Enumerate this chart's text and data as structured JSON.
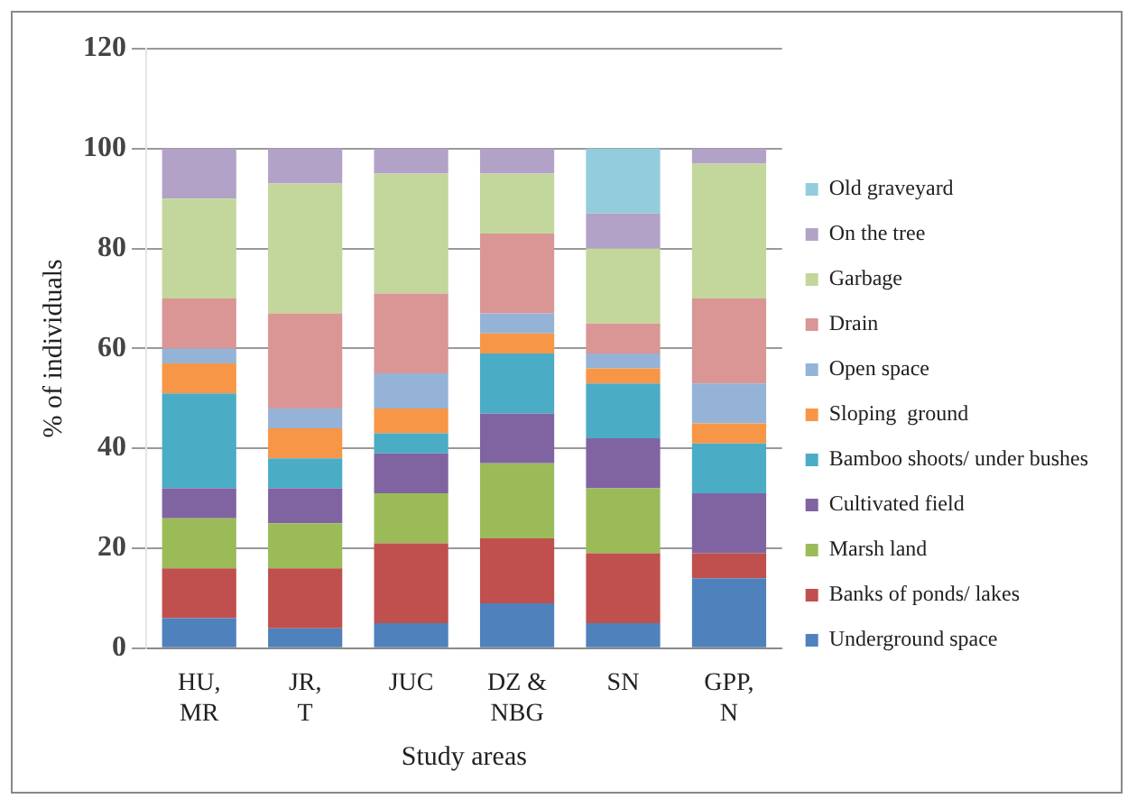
{
  "chart_data": {
    "type": "bar",
    "stacked": true,
    "xlabel": "Study areas",
    "ylabel": "% of individuals",
    "categories": [
      "HU, MR",
      "JR, T",
      "JUC",
      "DZ & NBG",
      "SN",
      "GPP, N"
    ],
    "ylim": [
      0,
      120
    ],
    "yticks": [
      0,
      20,
      40,
      60,
      80,
      100,
      120
    ],
    "grid": "y",
    "legend": "right",
    "series": [
      {
        "name": "Underground space",
        "color": "#4f81bd",
        "values": [
          6,
          4,
          5,
          9,
          5,
          14
        ]
      },
      {
        "name": "Banks of ponds/ lakes",
        "color": "#c0504d",
        "values": [
          10,
          12,
          16,
          13,
          14,
          5
        ]
      },
      {
        "name": "Marsh land",
        "color": "#9bbb59",
        "values": [
          10,
          9,
          10,
          15,
          13,
          0
        ]
      },
      {
        "name": "Cultivated field",
        "color": "#8064a2",
        "values": [
          6,
          7,
          8,
          10,
          10,
          12
        ]
      },
      {
        "name": "Bamboo shoots/ under bushes",
        "color": "#4bacc6",
        "values": [
          19,
          6,
          4,
          12,
          11,
          10
        ]
      },
      {
        "name": "Sloping  ground",
        "color": "#f79646",
        "values": [
          6,
          6,
          5,
          4,
          3,
          4
        ]
      },
      {
        "name": "Open space",
        "color": "#95b3d7",
        "values": [
          3,
          4,
          7,
          4,
          3,
          8
        ]
      },
      {
        "name": "Drain",
        "color": "#d99694",
        "values": [
          10,
          19,
          16,
          16,
          6,
          17
        ]
      },
      {
        "name": "Garbage",
        "color": "#c3d69b",
        "values": [
          20,
          26,
          24,
          12,
          15,
          27
        ]
      },
      {
        "name": "On the tree",
        "color": "#b3a2c7",
        "values": [
          10,
          7,
          5,
          5,
          7,
          3
        ]
      },
      {
        "name": "Old graveyard",
        "color": "#93cddd",
        "values": [
          0,
          0,
          0,
          0,
          13,
          0
        ]
      }
    ]
  }
}
